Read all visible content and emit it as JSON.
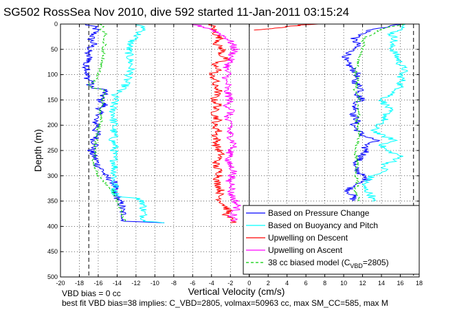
{
  "chart_data": {
    "type": "line",
    "title": "SG502 RossSea Nov 2010, dive 592 started 11-Jan-2011 03:15:24",
    "xlabel": "Vertical Velocity (cm/s)",
    "ylabel": "Depth (m)",
    "xlim": [
      -20,
      18
    ],
    "ylim": [
      500,
      0
    ],
    "y_reversed": true,
    "grid": true,
    "xticks": [
      "-20",
      "-18",
      "-16",
      "-14",
      "-12",
      "-10",
      "-8",
      "-6",
      "-4",
      "-2",
      "0",
      "2",
      "4",
      "6",
      "8",
      "10",
      "12",
      "14",
      "16",
      "18"
    ],
    "yticks": [
      "0",
      "50",
      "100",
      "150",
      "200",
      "250",
      "300",
      "350",
      "400",
      "450",
      "500"
    ],
    "reference_lines": {
      "vertical_dashed": [
        -17,
        17.4
      ],
      "vertical_solid": [
        0
      ]
    },
    "legend_placement": "bottom-right",
    "legend": [
      {
        "label": "Based on Pressure Change",
        "color": "#0000ff",
        "style": "solid"
      },
      {
        "label": "Based on Buoyancy and Pitch",
        "color": "#00ffff",
        "style": "solid"
      },
      {
        "label": "Upwelling on Descent",
        "color": "#ff0000",
        "style": "solid"
      },
      {
        "label": "Upwelling on Ascent",
        "color": "#ff00ff",
        "style": "solid"
      },
      {
        "label_prefix": "38 cc biased model (C",
        "label_sub": "VBD",
        "label_suffix": "=2805)",
        "color": "#00cc00",
        "style": "dashed"
      }
    ],
    "series": [
      {
        "name": "Based on Pressure Change",
        "color": "#0000ff",
        "segments": [
          {
            "depth": [
              0,
              5,
              12,
              20,
              30,
              40,
              50,
              60,
              70,
              80,
              90,
              100,
              110,
              115,
              120,
              125,
              130,
              140,
              150,
              160,
              170,
              180,
              190,
              200,
              210,
              220,
              230,
              240,
              250,
              260,
              270,
              280,
              290,
              300,
              310,
              320,
              330,
              340,
              350,
              360,
              370,
              380,
              385,
              390,
              393
            ],
            "value": [
              -17.5,
              -16.5,
              -16.2,
              -16.5,
              -16.8,
              -16.5,
              -17,
              -17.2,
              -16.8,
              -17.5,
              -17,
              -17.3,
              -17,
              -16.5,
              -17,
              -16.8,
              -15.2,
              -15.5,
              -15.8,
              -15.3,
              -16,
              -15.8,
              -16.5,
              -16,
              -16.3,
              -16,
              -16.5,
              -16.2,
              -16.8,
              -16.5,
              -16.2,
              -16,
              -15.5,
              -15.3,
              -14.5,
              -14.2,
              -14.5,
              -14,
              -13.8,
              -13.5,
              -13.5,
              -13.2,
              -13.5,
              -13,
              -9
            ]
          },
          {
            "depth": [
              0,
              5,
              10,
              20,
              30,
              40,
              50,
              60,
              70,
              80,
              90,
              100,
              110,
              120,
              130,
              140,
              150,
              160,
              170,
              180,
              190,
              200,
              210,
              220,
              230,
              240,
              250,
              260,
              270,
              280,
              290,
              300,
              310,
              320,
              330,
              340,
              350
            ],
            "value": [
              16,
              15,
              13,
              12,
              11,
              11.5,
              11,
              10.5,
              10,
              10.5,
              11,
              11.5,
              11,
              11.5,
              12,
              11.5,
              12,
              11,
              11.5,
              11,
              11.5,
              11,
              11.5,
              12,
              13.5,
              12,
              12.5,
              12,
              11.5,
              11,
              11.5,
              12,
              12.5,
              11,
              10.5,
              11,
              11
            ]
          }
        ]
      },
      {
        "name": "Based on Buoyancy and Pitch",
        "color": "#00ffff",
        "segments": [
          {
            "depth": [
              0,
              5,
              10,
              15,
              25,
              35,
              50,
              65,
              80,
              95,
              110,
              125,
              135,
              140,
              150,
              160,
              170,
              180,
              190,
              200,
              210,
              220,
              230,
              240,
              250,
              260,
              270,
              280,
              290,
              300,
              310,
              320,
              330,
              340,
              345,
              350,
              352,
              360,
              370,
              380,
              385,
              390,
              393
            ],
            "value": [
              -12,
              -11.5,
              -11,
              -11.5,
              -12,
              -12.5,
              -12.8,
              -12.7,
              -12.5,
              -12.6,
              -13,
              -13.2,
              -14,
              -14.3,
              -14.2,
              -14.4,
              -14.5,
              -14.3,
              -14.4,
              -14.3,
              -14.4,
              -14.3,
              -14.5,
              -14.2,
              -14.3,
              -14.4,
              -14.3,
              -14.2,
              -14.3,
              -14.2,
              -14.4,
              -14.2,
              -14.3,
              -14.0,
              -11.8,
              -11.5,
              -11.2,
              -11.2,
              -11.2,
              -11.2,
              -11.1,
              -11,
              -9
            ]
          },
          {
            "depth": [
              0,
              5,
              10,
              20,
              30,
              40,
              50,
              60,
              70,
              80,
              90,
              100,
              110,
              120,
              130,
              140,
              150,
              160,
              170,
              180,
              190,
              200,
              210,
              220,
              230,
              240,
              250,
              260,
              270,
              280,
              290,
              300,
              310,
              320,
              330,
              340,
              350
            ],
            "value": [
              17,
              16.5,
              16,
              15,
              15.5,
              15,
              15.2,
              15.5,
              15.8,
              16,
              16.5,
              16,
              16.2,
              16,
              15.8,
              15,
              14,
              14.5,
              14.8,
              14.5,
              14.3,
              13.5,
              13.2,
              14,
              15.5,
              14,
              14.5,
              16,
              15.5,
              14,
              14.5,
              13,
              12.5,
              12,
              12.5,
              13,
              13
            ]
          }
        ]
      },
      {
        "name": "Upwelling on Descent",
        "color": "#ff0000",
        "segments": [
          {
            "depth": [
              0,
              10,
              20,
              30,
              40,
              50,
              60,
              70,
              80,
              90,
              100,
              110,
              120,
              130,
              140,
              150,
              160,
              170,
              180,
              190,
              200,
              210,
              220,
              230,
              240,
              250,
              260,
              270,
              280,
              290,
              300,
              310,
              320,
              330,
              340,
              350,
              360,
              370,
              380,
              385,
              390,
              393
            ],
            "value": [
              -4,
              -3.8,
              -3.5,
              -3,
              -3.5,
              -2.8,
              -3,
              -2.5,
              -4,
              -3,
              -4.2,
              -3.5,
              -3.8,
              -3.2,
              -3.5,
              -3.8,
              -3.2,
              -3.7,
              -3.6,
              -3.3,
              -3.8,
              -3.2,
              -3.6,
              -3.4,
              -3.5,
              -3.2,
              -3,
              -3.4,
              -3.6,
              -3.2,
              -3.1,
              -3.5,
              -3.2,
              -3.0,
              -3.2,
              -3,
              -2.5,
              -2.2,
              -2.5,
              -2,
              -1.5,
              -2
            ]
          },
          {
            "depth": [
              0,
              2,
              4,
              6,
              8,
              10,
              12
            ],
            "value": [
              7,
              5.5,
              4.5,
              3.5,
              2.5,
              1.5,
              0.5
            ]
          }
        ]
      },
      {
        "name": "Upwelling on Ascent",
        "color": "#ff00ff",
        "segments": [
          {
            "depth": [
              0,
              10,
              20,
              30,
              40,
              50,
              60,
              70,
              80,
              90,
              100,
              110,
              120,
              130,
              140,
              150,
              160,
              170,
              180,
              190,
              200,
              210,
              220,
              230,
              240,
              250,
              260,
              270,
              280,
              290,
              300,
              310,
              320,
              330,
              340,
              350,
              360,
              370,
              380,
              390
            ],
            "value": [
              -6,
              -4,
              -3,
              -2.2,
              -1.8,
              -1.5,
              -1.8,
              -2,
              -2.2,
              -2.5,
              -2.2,
              -2.6,
              -2.3,
              -2.5,
              -2.2,
              -2,
              -2.4,
              -1.8,
              -2.2,
              -2.5,
              -1.8,
              -2.2,
              -2,
              -1.8,
              -1.5,
              -2.2,
              -1.8,
              -2.4,
              -2,
              -1.6,
              -1.8,
              -2.2,
              -1.6,
              -2,
              -1.8,
              -1.5,
              -1.2,
              -1.5,
              -1.8,
              -1.5
            ]
          }
        ]
      },
      {
        "name": "38 cc biased model (CVBD=2805)",
        "color": "#00cc00",
        "dashed": true,
        "segments": [
          {
            "depth": [
              0,
              5,
              10,
              20,
              30,
              40,
              50,
              60,
              70,
              80,
              90,
              100,
              110,
              115,
              120,
              125,
              130,
              140,
              150,
              160,
              170,
              180,
              190,
              200,
              210,
              220,
              230,
              240,
              250,
              260,
              270,
              280,
              290,
              300,
              310,
              320,
              330,
              340,
              350,
              360,
              370,
              380,
              390
            ],
            "value": [
              -16,
              -15.5,
              -15.8,
              -15.2,
              -15.5,
              -15.3,
              -15.6,
              -15.4,
              -15.5,
              -15.6,
              -15.8,
              -16,
              -16.2,
              -16.5,
              -17,
              -16.8,
              -15.3,
              -15.4,
              -15.6,
              -15.5,
              -15.8,
              -15.7,
              -15.6,
              -15.9,
              -16,
              -16.1,
              -16.2,
              -16.3,
              -16.2,
              -16.4,
              -16.5,
              -16.3,
              -16.2,
              -16,
              -15.5,
              -15,
              -14.5,
              -14.2,
              -14,
              -13.8,
              -13.6,
              -13.4,
              -13.2
            ]
          },
          {
            "depth": [
              0,
              5,
              10,
              20,
              30,
              40,
              50,
              60,
              70,
              80,
              90,
              100,
              110,
              120,
              130,
              140,
              150,
              160,
              170,
              180,
              190,
              200,
              210,
              220,
              230,
              240,
              250,
              260,
              270,
              280,
              290,
              300,
              310,
              320,
              330,
              340,
              350
            ],
            "value": [
              16.5,
              15,
              14,
              13,
              12,
              12.2,
              12,
              11.8,
              11.6,
              11.5,
              11.2,
              11.3,
              11.5,
              11.4,
              11.2,
              11.5,
              11.6,
              11.4,
              11.5,
              11.6,
              11.4,
              11.6,
              11.5,
              11.8,
              11.5,
              11.4,
              11.2,
              11.3,
              11.5,
              11.4,
              11.2,
              11.3,
              11.5,
              11.4,
              11.2,
              11.5,
              11.6
            ]
          }
        ]
      }
    ]
  },
  "footer": {
    "line1": "VBD bias = 0 cc",
    "line2": "best fit VBD bias=38 implies: C_VBD=2805, volmax=50963 cc, max SM_CC=585, max M"
  }
}
